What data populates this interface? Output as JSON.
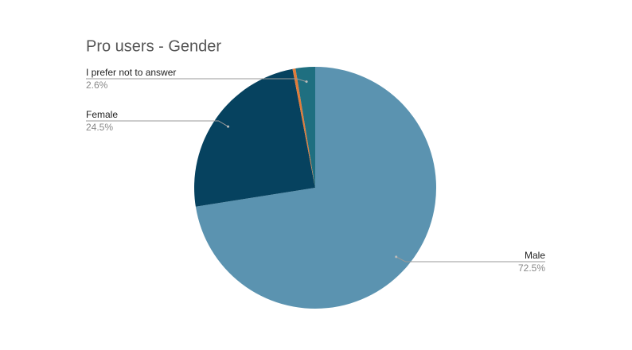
{
  "chart_data": {
    "type": "pie",
    "title": "Pro users - Gender",
    "categories": [
      "Male",
      "Female",
      null,
      "I prefer not to answer"
    ],
    "values": [
      72.5,
      24.5,
      0.4,
      2.6
    ],
    "value_labels": [
      "72.5%",
      "24.5%",
      null,
      "2.6%"
    ],
    "colors": [
      "#5b93b0",
      "#06425f",
      "#e07b39",
      "#1f6f80"
    ]
  }
}
